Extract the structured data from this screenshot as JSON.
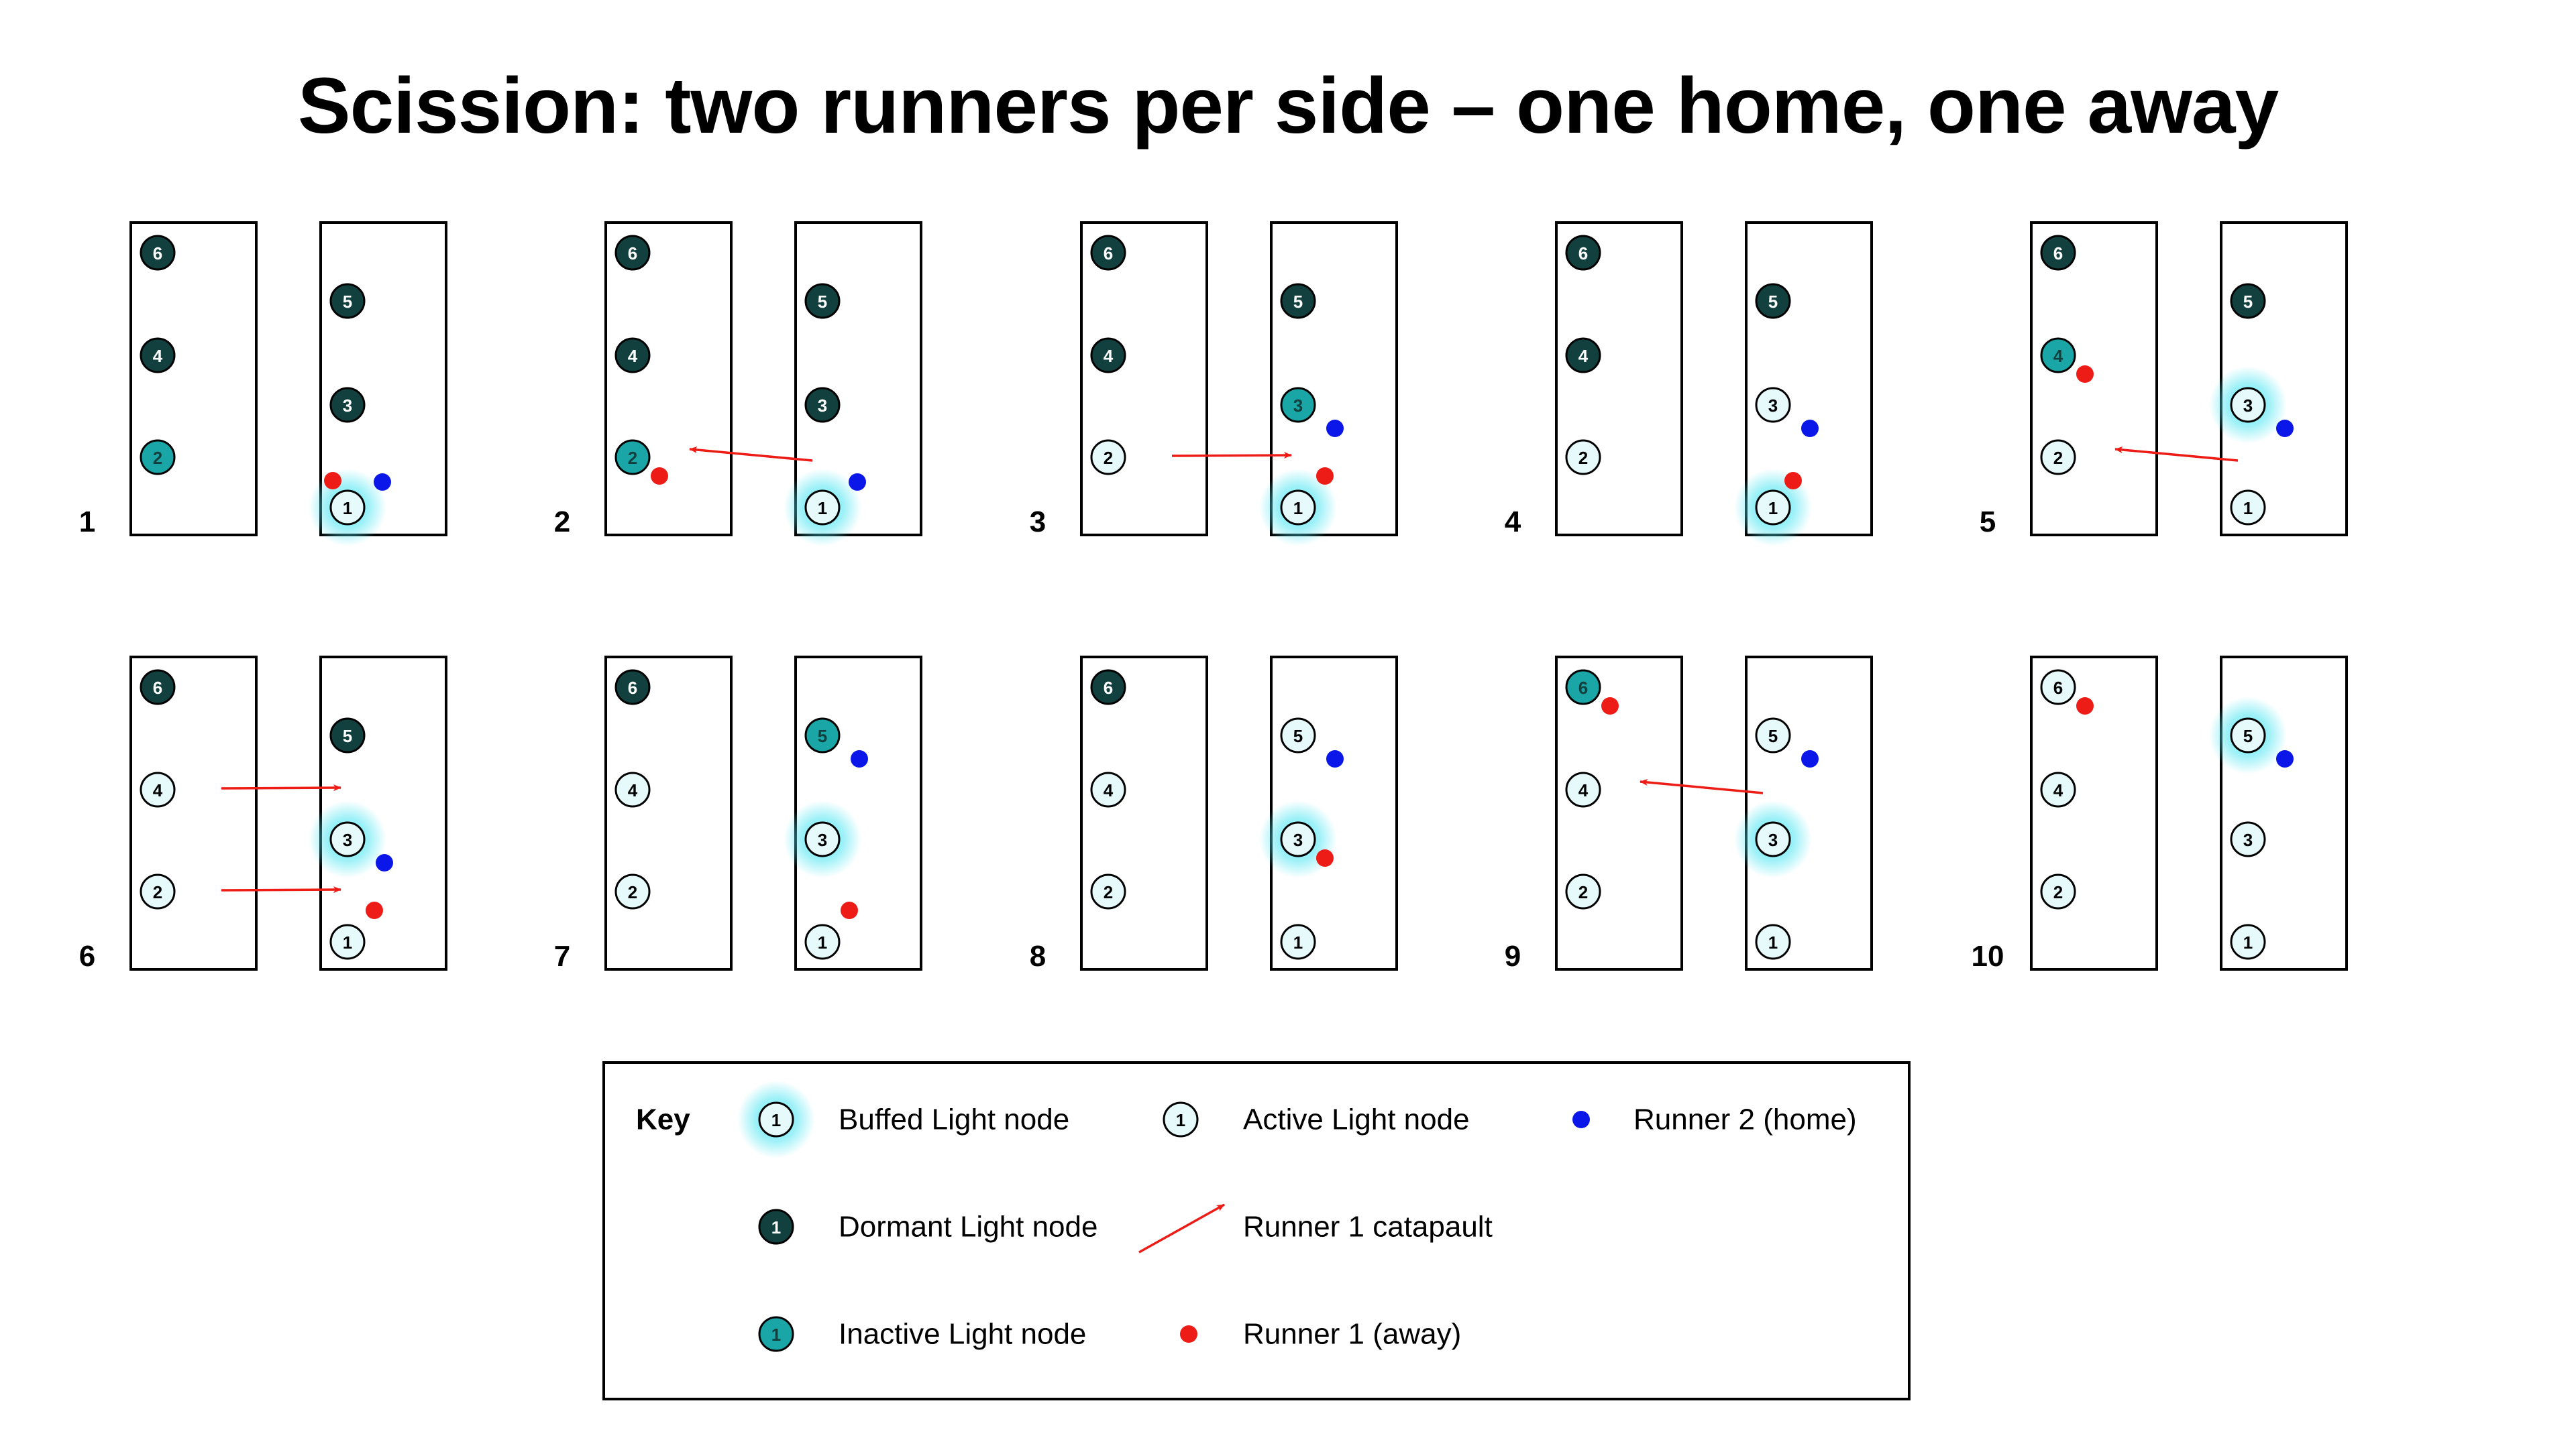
{
  "title": "Scission: two runners per side – one home, one away",
  "colors": {
    "dormant": "#11403f",
    "inactive": "#1aa6a6",
    "active": "#e6f9fb",
    "buffed_glow": "#4fe6f2",
    "runner_home": "#0b17e8",
    "runner_away": "#ee1c16",
    "catapult": "#ee1c16"
  },
  "panels": [
    {
      "label": "1",
      "left": {
        "nodes": [
          {
            "n": "6",
            "state": "dormant"
          },
          {
            "n": "4",
            "state": "dormant"
          },
          {
            "n": "2",
            "state": "inactive"
          }
        ]
      },
      "right": {
        "nodes": [
          {
            "n": "5",
            "state": "dormant"
          },
          {
            "n": "3",
            "state": "dormant"
          },
          {
            "n": "1",
            "state": "buffed"
          }
        ]
      },
      "runners": [
        {
          "kind": "away",
          "side": "right",
          "slot": 1
        },
        {
          "kind": "home",
          "side": "right",
          "slot": 1
        }
      ],
      "catapults": []
    },
    {
      "label": "2",
      "left": {
        "nodes": [
          {
            "n": "6",
            "state": "dormant"
          },
          {
            "n": "4",
            "state": "dormant"
          },
          {
            "n": "2",
            "state": "inactive"
          }
        ]
      },
      "right": {
        "nodes": [
          {
            "n": "5",
            "state": "dormant"
          },
          {
            "n": "3",
            "state": "dormant"
          },
          {
            "n": "1",
            "state": "buffed"
          }
        ]
      },
      "runners": [
        {
          "kind": "away",
          "side": "left",
          "slot": 2
        },
        {
          "kind": "home",
          "side": "right",
          "slot": 1
        }
      ],
      "catapults": [
        {
          "from_side": "right",
          "from_slot": 1,
          "to_side": "left",
          "to_slot": 2
        }
      ]
    },
    {
      "label": "3",
      "left": {
        "nodes": [
          {
            "n": "6",
            "state": "dormant"
          },
          {
            "n": "4",
            "state": "dormant"
          },
          {
            "n": "2",
            "state": "active"
          }
        ]
      },
      "right": {
        "nodes": [
          {
            "n": "5",
            "state": "dormant"
          },
          {
            "n": "3",
            "state": "inactive"
          },
          {
            "n": "1",
            "state": "buffed"
          }
        ]
      },
      "runners": [
        {
          "kind": "home",
          "side": "right",
          "slot": 3
        },
        {
          "kind": "away",
          "side": "right",
          "slot": 2
        }
      ],
      "catapults": [
        {
          "from_side": "left",
          "from_slot": 2,
          "to_side": "right",
          "to_slot": 2
        }
      ]
    },
    {
      "label": "4",
      "left": {
        "nodes": [
          {
            "n": "6",
            "state": "dormant"
          },
          {
            "n": "4",
            "state": "dormant"
          },
          {
            "n": "2",
            "state": "active"
          }
        ]
      },
      "right": {
        "nodes": [
          {
            "n": "5",
            "state": "dormant"
          },
          {
            "n": "3",
            "state": "active"
          },
          {
            "n": "1",
            "state": "buffed"
          }
        ]
      },
      "runners": [
        {
          "kind": "home",
          "side": "right",
          "slot": 3
        },
        {
          "kind": "away",
          "side": "right",
          "slot": 1
        }
      ],
      "catapults": []
    },
    {
      "label": "5",
      "left": {
        "nodes": [
          {
            "n": "6",
            "state": "dormant"
          },
          {
            "n": "4",
            "state": "inactive"
          },
          {
            "n": "2",
            "state": "active"
          }
        ]
      },
      "right": {
        "nodes": [
          {
            "n": "5",
            "state": "dormant"
          },
          {
            "n": "3",
            "state": "buffed"
          },
          {
            "n": "1",
            "state": "active"
          }
        ]
      },
      "runners": [
        {
          "kind": "away",
          "side": "left",
          "slot": 4
        },
        {
          "kind": "home",
          "side": "right",
          "slot": 3
        }
      ],
      "catapults": [
        {
          "from_side": "right",
          "from_slot": 1,
          "to_side": "left",
          "to_slot": 2
        }
      ]
    },
    {
      "label": "6",
      "left": {
        "nodes": [
          {
            "n": "6",
            "state": "dormant"
          },
          {
            "n": "4",
            "state": "active"
          },
          {
            "n": "2",
            "state": "active"
          }
        ]
      },
      "right": {
        "nodes": [
          {
            "n": "5",
            "state": "dormant"
          },
          {
            "n": "3",
            "state": "buffed"
          },
          {
            "n": "1",
            "state": "active"
          }
        ]
      },
      "runners": [
        {
          "kind": "home",
          "side": "right",
          "slot": 3
        },
        {
          "kind": "away",
          "side": "right",
          "slot": 2
        }
      ],
      "catapults": [
        {
          "from_side": "left",
          "from_slot": 4,
          "to_side": "right",
          "to_slot": 4
        },
        {
          "from_side": "left",
          "from_slot": 2,
          "to_side": "right",
          "to_slot": 2
        }
      ]
    },
    {
      "label": "7",
      "left": {
        "nodes": [
          {
            "n": "6",
            "state": "dormant"
          },
          {
            "n": "4",
            "state": "active"
          },
          {
            "n": "2",
            "state": "active"
          }
        ]
      },
      "right": {
        "nodes": [
          {
            "n": "5",
            "state": "inactive"
          },
          {
            "n": "3",
            "state": "buffed"
          },
          {
            "n": "1",
            "state": "active"
          }
        ]
      },
      "runners": [
        {
          "kind": "home",
          "side": "right",
          "slot": 5
        },
        {
          "kind": "away",
          "side": "right",
          "slot": 2
        }
      ],
      "catapults": []
    },
    {
      "label": "8",
      "left": {
        "nodes": [
          {
            "n": "6",
            "state": "dormant"
          },
          {
            "n": "4",
            "state": "active"
          },
          {
            "n": "2",
            "state": "active"
          }
        ]
      },
      "right": {
        "nodes": [
          {
            "n": "5",
            "state": "active"
          },
          {
            "n": "3",
            "state": "buffed"
          },
          {
            "n": "1",
            "state": "active"
          }
        ]
      },
      "runners": [
        {
          "kind": "home",
          "side": "right",
          "slot": 5
        },
        {
          "kind": "away",
          "side": "right",
          "slot": 3
        }
      ],
      "catapults": []
    },
    {
      "label": "9",
      "left": {
        "nodes": [
          {
            "n": "6",
            "state": "inactive"
          },
          {
            "n": "4",
            "state": "active"
          },
          {
            "n": "2",
            "state": "active"
          }
        ]
      },
      "right": {
        "nodes": [
          {
            "n": "5",
            "state": "active"
          },
          {
            "n": "3",
            "state": "buffed"
          },
          {
            "n": "1",
            "state": "active"
          }
        ]
      },
      "runners": [
        {
          "kind": "away",
          "side": "left",
          "slot": 6
        },
        {
          "kind": "home",
          "side": "right",
          "slot": 5
        }
      ],
      "catapults": [
        {
          "from_side": "right",
          "from_slot": 4,
          "to_side": "left",
          "to_slot": 4
        }
      ]
    },
    {
      "label": "10",
      "left": {
        "nodes": [
          {
            "n": "6",
            "state": "active"
          },
          {
            "n": "4",
            "state": "active"
          },
          {
            "n": "2",
            "state": "active"
          }
        ]
      },
      "right": {
        "nodes": [
          {
            "n": "5",
            "state": "buffed"
          },
          {
            "n": "3",
            "state": "active"
          },
          {
            "n": "1",
            "state": "active"
          }
        ]
      },
      "runners": [
        {
          "kind": "away",
          "side": "left",
          "slot": 6
        },
        {
          "kind": "home",
          "side": "right",
          "slot": 5
        }
      ],
      "catapults": []
    }
  ],
  "key": {
    "title": "Key",
    "sample_node": "1",
    "buffed": "Buffed Light node",
    "active": "Active Light node",
    "runner_home": "Runner 2 (home)",
    "dormant": "Dormant Light node",
    "catapult": "Runner 1 catapault",
    "inactive": "Inactive Light node",
    "runner_away": "Runner 1 (away)"
  }
}
